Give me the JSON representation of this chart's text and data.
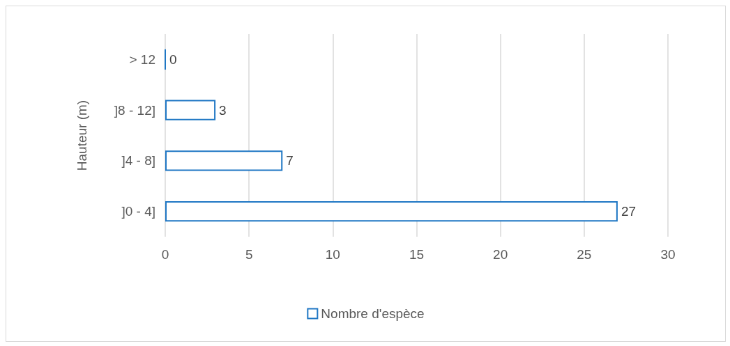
{
  "chart_data": {
    "type": "bar",
    "orientation": "horizontal",
    "ylabel": "Hauteur (m)",
    "categories": [
      "> 12",
      "]8 - 12]",
      "]4 - 8]",
      "]0 - 4]"
    ],
    "series": [
      {
        "name": "Nombre d'espèce",
        "color": "#1f77c4",
        "values": [
          0,
          3,
          7,
          27
        ]
      }
    ],
    "xlim": [
      0,
      30
    ],
    "xticks": [
      0,
      5,
      10,
      15,
      20,
      25,
      30
    ],
    "grid": "x",
    "legend": "bottom",
    "data_labels": true
  }
}
